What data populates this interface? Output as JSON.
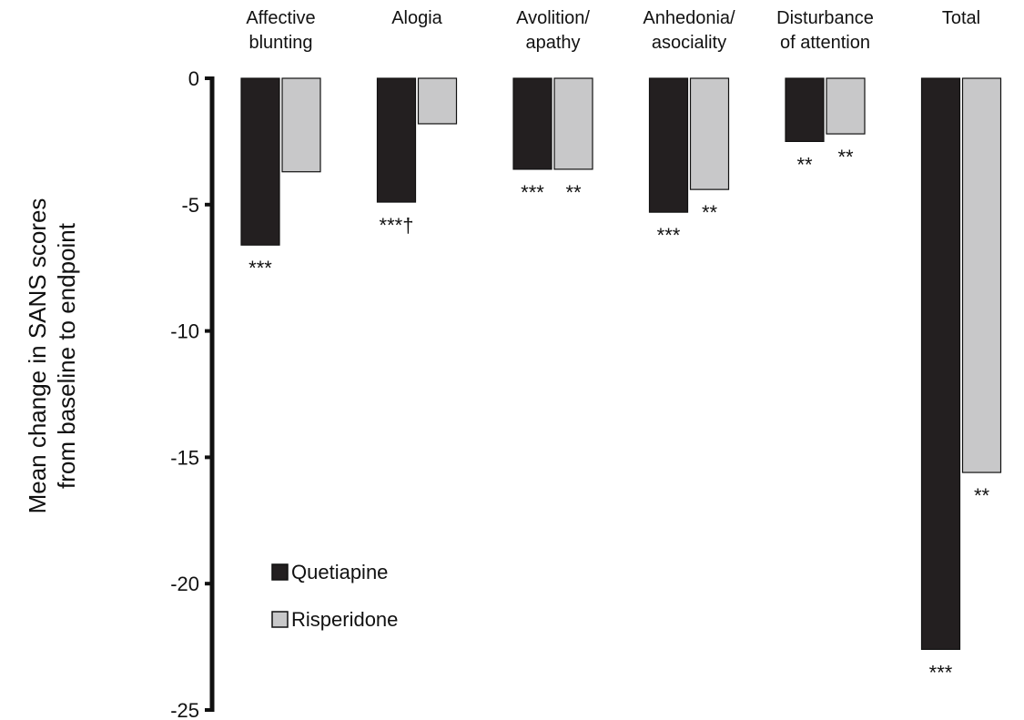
{
  "chart_data": {
    "type": "bar",
    "ylabel_line1": "Mean change in SANS scores",
    "ylabel_line2": "from baseline to endpoint",
    "ylim": [
      -25,
      0
    ],
    "yticks": [
      0,
      -5,
      -10,
      -15,
      -20,
      -25
    ],
    "grid": false,
    "legend_position": "bottom-left",
    "categories": [
      [
        "Affective",
        "blunting"
      ],
      [
        "Alogia"
      ],
      [
        "Avolition/",
        "apathy"
      ],
      [
        "Anhedonia/",
        "asociality"
      ],
      [
        "Disturbance",
        "of attention"
      ],
      [
        "Total"
      ]
    ],
    "series": [
      {
        "name": "Quetiapine",
        "color": "#231f20",
        "values": [
          -6.6,
          -4.9,
          -3.6,
          -5.3,
          -2.5,
          -22.6
        ],
        "annotations": [
          "***",
          "***†",
          "***",
          "***",
          "**",
          "***"
        ]
      },
      {
        "name": "Risperidone",
        "color": "#c8c8c9",
        "values": [
          -3.7,
          -1.8,
          -3.6,
          -4.4,
          -2.2,
          -15.6
        ],
        "annotations": [
          "",
          "",
          "**",
          "**",
          "**",
          "**"
        ]
      }
    ]
  }
}
